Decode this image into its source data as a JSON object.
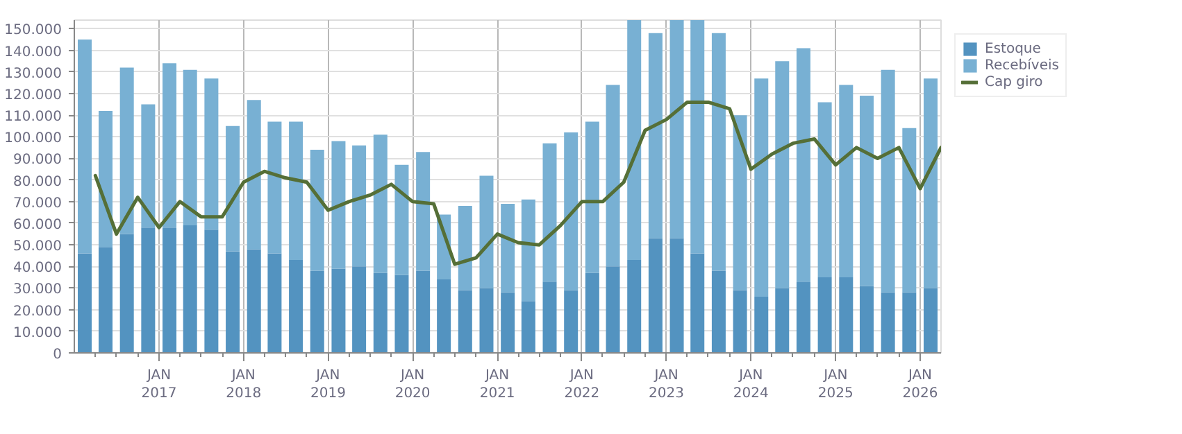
{
  "chart_data": {
    "type": "bar",
    "stacked": true,
    "x": [
      "2016-02-15",
      "2016-05-15",
      "2016-08-15",
      "2016-11-15",
      "2017-02-15",
      "2017-05-15",
      "2017-08-15",
      "2017-11-15",
      "2018-02-15",
      "2018-05-15",
      "2018-08-15",
      "2018-11-15",
      "2019-02-15",
      "2019-05-15",
      "2019-08-15",
      "2019-11-15",
      "2020-02-15",
      "2020-05-15",
      "2020-08-15",
      "2020-11-15",
      "2021-02-15",
      "2021-05-15",
      "2021-08-15",
      "2021-11-15",
      "2022-02-15",
      "2022-05-15",
      "2022-08-15",
      "2022-11-15",
      "2023-02-15",
      "2023-05-15",
      "2023-08-15",
      "2023-11-15",
      "2024-02-15",
      "2024-05-15",
      "2024-08-15",
      "2024-11-15",
      "2025-02-15",
      "2025-05-15",
      "2025-08-15",
      "2025-11-15",
      "2026-02-15"
    ],
    "series": [
      {
        "name": "Estoque",
        "color": "#5393c0",
        "values": [
          46000,
          49000,
          55000,
          58000,
          58000,
          59000,
          57000,
          47000,
          48000,
          46000,
          43000,
          38000,
          39000,
          40000,
          37000,
          36000,
          38000,
          34000,
          29000,
          30000,
          28000,
          24000,
          33000,
          29000,
          37000,
          40000,
          43000,
          53000,
          53000,
          46000,
          38000,
          29000,
          26000,
          30000,
          33000,
          35000,
          35000,
          31000,
          28000,
          28000,
          30000
        ]
      },
      {
        "name": "Recebíveis",
        "color": "#78b0d3",
        "values": [
          99000,
          63000,
          77000,
          57000,
          76000,
          72000,
          70000,
          58000,
          69000,
          61000,
          64000,
          56000,
          59000,
          56000,
          64000,
          51000,
          55000,
          30000,
          39000,
          52000,
          41000,
          47000,
          64000,
          73000,
          70000,
          84000,
          111000,
          95000,
          101000,
          108000,
          110000,
          81000,
          101000,
          105000,
          108000,
          81000,
          89000,
          88000,
          103000,
          76000,
          97000
        ]
      },
      {
        "name": "Cap giro",
        "type": "line",
        "color": "#556f37",
        "x": [
          "2016-04-01",
          "2016-07-01",
          "2016-10-01",
          "2017-01-01",
          "2017-04-01",
          "2017-07-01",
          "2017-10-01",
          "2018-01-01",
          "2018-04-01",
          "2018-07-01",
          "2018-10-01",
          "2019-01-01",
          "2019-04-01",
          "2019-07-01",
          "2019-10-01",
          "2020-01-01",
          "2020-04-01",
          "2020-07-01",
          "2020-10-01",
          "2021-01-01",
          "2021-04-01",
          "2021-07-01",
          "2021-10-01",
          "2022-01-01",
          "2022-04-01",
          "2022-07-01",
          "2022-10-01",
          "2023-01-01",
          "2023-04-01",
          "2023-07-01",
          "2023-10-01",
          "2024-01-01",
          "2024-04-01",
          "2024-07-01",
          "2024-10-01",
          "2025-01-01",
          "2025-04-01",
          "2025-07-01",
          "2025-10-01",
          "2026-01-01",
          "2026-04-01"
        ],
        "values": [
          82000,
          55000,
          72000,
          58000,
          70000,
          63000,
          63000,
          79000,
          84000,
          81000,
          79000,
          66000,
          70000,
          73000,
          78000,
          70000,
          69000,
          41000,
          44000,
          55000,
          51000,
          50000,
          59000,
          70000,
          70000,
          79000,
          103000,
          108000,
          116000,
          116000,
          113000,
          85000,
          92000,
          97000,
          99000,
          87000,
          95000,
          90000,
          95000,
          76000,
          95000
        ]
      }
    ],
    "xlim": [
      "2016-01-01",
      "2026-04-01"
    ],
    "xticks": [
      {
        "value": "2016-04-01",
        "label": null
      },
      {
        "value": "2016-07-01",
        "label": null
      },
      {
        "value": "2016-10-01",
        "label": null
      },
      {
        "value": "2017-01-01",
        "label": "JAN\n2017"
      },
      {
        "value": "2017-04-01",
        "label": null
      },
      {
        "value": "2017-07-01",
        "label": null
      },
      {
        "value": "2017-10-01",
        "label": null
      },
      {
        "value": "2018-01-01",
        "label": "JAN\n2018"
      },
      {
        "value": "2018-04-01",
        "label": null
      },
      {
        "value": "2018-07-01",
        "label": null
      },
      {
        "value": "2018-10-01",
        "label": null
      },
      {
        "value": "2019-01-01",
        "label": "JAN\n2019"
      },
      {
        "value": "2019-04-01",
        "label": null
      },
      {
        "value": "2019-07-01",
        "label": null
      },
      {
        "value": "2019-10-01",
        "label": null
      },
      {
        "value": "2020-01-01",
        "label": "JAN\n2020"
      },
      {
        "value": "2020-04-01",
        "label": null
      },
      {
        "value": "2020-07-01",
        "label": null
      },
      {
        "value": "2020-10-01",
        "label": null
      },
      {
        "value": "2021-01-01",
        "label": "JAN\n2021"
      },
      {
        "value": "2021-04-01",
        "label": null
      },
      {
        "value": "2021-07-01",
        "label": null
      },
      {
        "value": "2021-10-01",
        "label": null
      },
      {
        "value": "2022-01-01",
        "label": "JAN\n2022"
      },
      {
        "value": "2022-04-01",
        "label": null
      },
      {
        "value": "2022-07-01",
        "label": null
      },
      {
        "value": "2022-10-01",
        "label": null
      },
      {
        "value": "2023-01-01",
        "label": "JAN\n2023"
      },
      {
        "value": "2023-04-01",
        "label": null
      },
      {
        "value": "2023-07-01",
        "label": null
      },
      {
        "value": "2023-10-01",
        "label": null
      },
      {
        "value": "2024-01-01",
        "label": "JAN\n2024"
      },
      {
        "value": "2024-04-01",
        "label": null
      },
      {
        "value": "2024-07-01",
        "label": null
      },
      {
        "value": "2024-10-01",
        "label": null
      },
      {
        "value": "2025-01-01",
        "label": "JAN\n2025"
      },
      {
        "value": "2025-04-01",
        "label": null
      },
      {
        "value": "2025-07-01",
        "label": null
      },
      {
        "value": "2025-10-01",
        "label": null
      },
      {
        "value": "2026-01-01",
        "label": "JAN\n2026"
      }
    ],
    "ylim": [
      0,
      154000
    ],
    "yticks": [
      0,
      {
        "value": 10000,
        "label": "10.000"
      },
      {
        "value": 20000,
        "label": "20.000"
      },
      {
        "value": 30000,
        "label": "30.000"
      },
      {
        "value": 40000,
        "label": "40.000"
      },
      {
        "value": 50000,
        "label": "50.000"
      },
      {
        "value": 60000,
        "label": "60.000"
      },
      {
        "value": 70000,
        "label": "70.000"
      },
      {
        "value": 80000,
        "label": "80.000"
      },
      {
        "value": 90000,
        "label": "90.000"
      },
      {
        "value": 100000,
        "label": "100.000"
      },
      {
        "value": 110000,
        "label": "110.000"
      },
      {
        "value": 120000,
        "label": "120.000"
      },
      {
        "value": 130000,
        "label": "130.000"
      },
      {
        "value": 140000,
        "label": "140.000"
      },
      {
        "value": 150000,
        "label": "150.000"
      }
    ],
    "grid": true,
    "legend": "top right"
  }
}
